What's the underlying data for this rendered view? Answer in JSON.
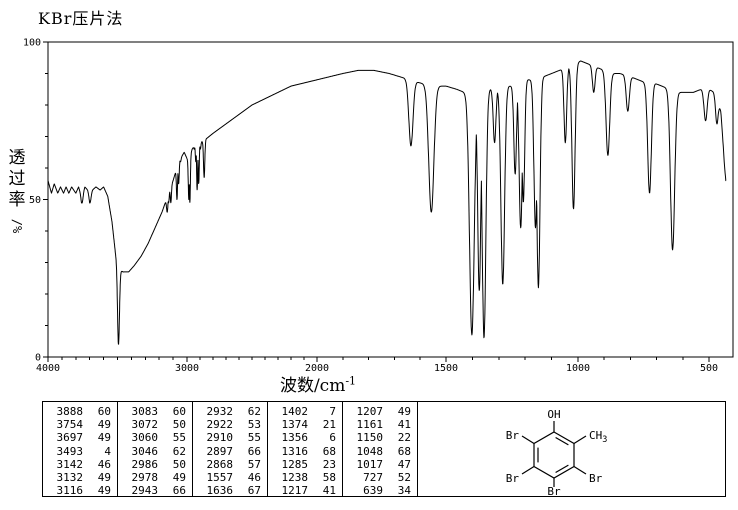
{
  "title": "KBr压片法",
  "axes": {
    "y_label_cjk": "透过率",
    "y_label_unit": "/%",
    "x_label": "波数/cm",
    "x_label_sup": "-1"
  },
  "chart_data": {
    "type": "line",
    "title": "KBr压片法",
    "xlabel": "波数/cm⁻¹",
    "ylabel": "透过率/%",
    "x_axis": {
      "ticks": [
        4000,
        3000,
        2000,
        1500,
        1000,
        500
      ],
      "max": 4000,
      "min": 430,
      "reversed": true,
      "scale_doubles_below": 2000,
      "minor_tick_step": 100
    },
    "y_axis": {
      "ticks": [
        0,
        50,
        100
      ],
      "min": 0,
      "max": 100,
      "minor_tick_step": 10
    },
    "grid": false,
    "line_color": "#000000",
    "peaks_nu_T_width": [
      [
        3888,
        60,
        7
      ],
      [
        3754,
        49,
        7
      ],
      [
        3697,
        49,
        7
      ],
      [
        3493,
        4,
        7
      ],
      [
        3142,
        46,
        5
      ],
      [
        3132,
        49,
        4
      ],
      [
        3116,
        49,
        4
      ],
      [
        3083,
        60,
        4
      ],
      [
        3072,
        50,
        4
      ],
      [
        3060,
        55,
        4
      ],
      [
        3046,
        62,
        4
      ],
      [
        2986,
        50,
        4
      ],
      [
        2978,
        49,
        4
      ],
      [
        2943,
        66,
        4
      ],
      [
        2932,
        62,
        4
      ],
      [
        2922,
        53,
        4
      ],
      [
        2910,
        55,
        4
      ],
      [
        2897,
        66,
        4
      ],
      [
        2868,
        57,
        5
      ],
      [
        1557,
        46,
        10
      ],
      [
        1636,
        67,
        8
      ],
      [
        1402,
        7,
        9
      ],
      [
        1374,
        21,
        6
      ],
      [
        1356,
        6,
        7
      ],
      [
        1316,
        68,
        5
      ],
      [
        1285,
        23,
        7
      ],
      [
        1238,
        58,
        5
      ],
      [
        1217,
        41,
        6
      ],
      [
        1207,
        49,
        5
      ],
      [
        1161,
        41,
        6
      ],
      [
        1150,
        22,
        6
      ],
      [
        1048,
        68,
        5
      ],
      [
        1017,
        47,
        6
      ],
      [
        727,
        52,
        7
      ],
      [
        639,
        34,
        8
      ]
    ],
    "unlabeled_dips_nu_T_width": [
      [
        940,
        84,
        5
      ],
      [
        886,
        64,
        7
      ],
      [
        810,
        78,
        6
      ],
      [
        513,
        75,
        6
      ],
      [
        470,
        74,
        5
      ]
    ],
    "baseline_envelope_nu_T": [
      [
        4000,
        56
      ],
      [
        3975,
        52
      ],
      [
        3955,
        55
      ],
      [
        3930,
        52
      ],
      [
        3910,
        54
      ],
      [
        3888,
        52
      ],
      [
        3870,
        54
      ],
      [
        3850,
        52
      ],
      [
        3830,
        54
      ],
      [
        3800,
        52
      ],
      [
        3780,
        54
      ],
      [
        3760,
        51
      ],
      [
        3735,
        54
      ],
      [
        3715,
        53
      ],
      [
        3700,
        51
      ],
      [
        3680,
        53
      ],
      [
        3655,
        54
      ],
      [
        3625,
        53
      ],
      [
        3600,
        54
      ],
      [
        3570,
        51
      ],
      [
        3540,
        43
      ],
      [
        3515,
        33
      ],
      [
        3495,
        28
      ],
      [
        3460,
        27
      ],
      [
        3420,
        27
      ],
      [
        3380,
        29
      ],
      [
        3330,
        32
      ],
      [
        3280,
        36
      ],
      [
        3230,
        41
      ],
      [
        3180,
        46
      ],
      [
        3140,
        51
      ],
      [
        3100,
        56
      ],
      [
        3060,
        62
      ],
      [
        3020,
        65
      ],
      [
        2990,
        62
      ],
      [
        2960,
        66
      ],
      [
        2930,
        68
      ],
      [
        2900,
        68
      ],
      [
        2860,
        69
      ],
      [
        2800,
        71
      ],
      [
        2700,
        74
      ],
      [
        2600,
        77
      ],
      [
        2500,
        80
      ],
      [
        2400,
        82
      ],
      [
        2300,
        84
      ],
      [
        2200,
        86
      ],
      [
        2100,
        87
      ],
      [
        2000,
        88
      ],
      [
        1900,
        90
      ],
      [
        1840,
        91
      ],
      [
        1780,
        91
      ],
      [
        1720,
        90
      ],
      [
        1680,
        89
      ],
      [
        1640,
        88
      ],
      [
        1600,
        87
      ],
      [
        1550,
        86
      ],
      [
        1500,
        86
      ],
      [
        1460,
        85
      ],
      [
        1430,
        84
      ],
      [
        1400,
        84
      ],
      [
        1370,
        84
      ],
      [
        1340,
        85
      ],
      [
        1310,
        85
      ],
      [
        1280,
        86
      ],
      [
        1250,
        86
      ],
      [
        1220,
        87
      ],
      [
        1190,
        88
      ],
      [
        1160,
        88
      ],
      [
        1130,
        89
      ],
      [
        1100,
        90
      ],
      [
        1070,
        91
      ],
      [
        1040,
        92
      ],
      [
        1010,
        93
      ],
      [
        990,
        94
      ],
      [
        960,
        93
      ],
      [
        930,
        92
      ],
      [
        900,
        91
      ],
      [
        870,
        90
      ],
      [
        840,
        90
      ],
      [
        800,
        89
      ],
      [
        770,
        88
      ],
      [
        740,
        87
      ],
      [
        710,
        87
      ],
      [
        680,
        86
      ],
      [
        650,
        85
      ],
      [
        620,
        84
      ],
      [
        590,
        84
      ],
      [
        560,
        84
      ],
      [
        530,
        85
      ],
      [
        500,
        85
      ],
      [
        480,
        84
      ],
      [
        465,
        82
      ],
      [
        455,
        78
      ],
      [
        448,
        70
      ],
      [
        442,
        62
      ],
      [
        436,
        56
      ]
    ]
  },
  "peak_table": {
    "columns": [
      {
        "rows": [
          [
            "3888",
            "60"
          ],
          [
            "3754",
            "49"
          ],
          [
            "3697",
            "49"
          ],
          [
            "3493",
            "4"
          ],
          [
            "3142",
            "46"
          ],
          [
            "3132",
            "49"
          ],
          [
            "3116",
            "49"
          ]
        ]
      },
      {
        "rows": [
          [
            "3083",
            "60"
          ],
          [
            "3072",
            "50"
          ],
          [
            "3060",
            "55"
          ],
          [
            "3046",
            "62"
          ],
          [
            "2986",
            "50"
          ],
          [
            "2978",
            "49"
          ],
          [
            "2943",
            "66"
          ]
        ]
      },
      {
        "rows": [
          [
            "2932",
            "62"
          ],
          [
            "2922",
            "53"
          ],
          [
            "2910",
            "55"
          ],
          [
            "2897",
            "66"
          ],
          [
            "2868",
            "57"
          ],
          [
            "1557",
            "46"
          ],
          [
            "1636",
            "67"
          ]
        ]
      },
      {
        "rows": [
          [
            "1402",
            "7"
          ],
          [
            "1374",
            "21"
          ],
          [
            "1356",
            "6"
          ],
          [
            "1316",
            "68"
          ],
          [
            "1285",
            "23"
          ],
          [
            "1238",
            "58"
          ],
          [
            "1217",
            "41"
          ]
        ]
      },
      {
        "rows": [
          [
            "1207",
            "49"
          ],
          [
            "1161",
            "41"
          ],
          [
            "1150",
            "22"
          ],
          [
            "1048",
            "68"
          ],
          [
            "1017",
            "47"
          ],
          [
            "727",
            "52"
          ],
          [
            "639",
            "34"
          ]
        ]
      }
    ]
  },
  "structure": {
    "labels": {
      "hydroxyl": "OH",
      "methyl_main": "CH",
      "methyl_sub": "3",
      "bromo": "Br"
    }
  }
}
